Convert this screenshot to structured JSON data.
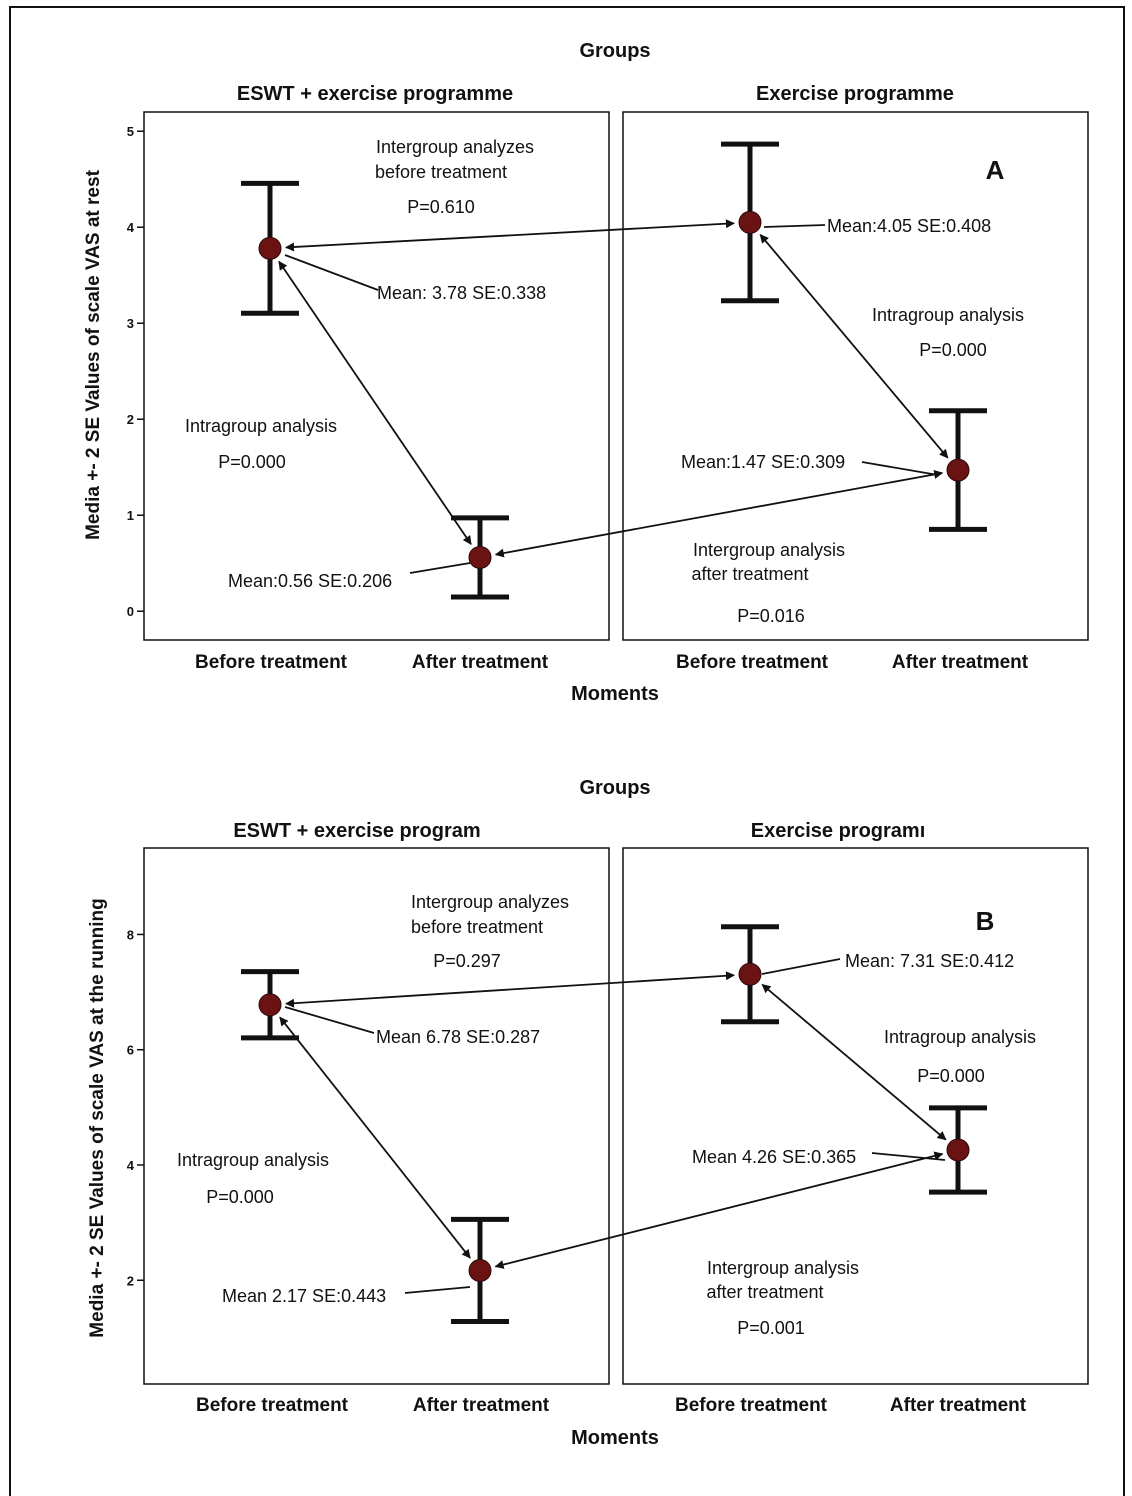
{
  "chart_data": [
    {
      "type": "errorbar",
      "letter": "A",
      "header": "Groups",
      "xlabel": "Moments",
      "ylabel": "Media +- 2 SE Values of scale VAS at rest",
      "yticks": [
        0,
        1,
        2,
        3,
        4,
        5
      ],
      "ylim": [
        -0.3,
        5.2
      ],
      "categories": [
        "Before treatment",
        "After treatment"
      ],
      "panels": [
        {
          "title": "ESWT + exercise programme",
          "points": [
            {
              "category": "Before treatment",
              "mean": 3.78,
              "se": 0.338,
              "label": "Mean: 3.78 SE:0.338"
            },
            {
              "category": "After treatment",
              "mean": 0.56,
              "se": 0.206,
              "label": "Mean:0.56 SE:0.206"
            }
          ],
          "intragroup": {
            "title": "Intragroup analysis",
            "p": "P=0.000"
          }
        },
        {
          "title": "Exercise programme",
          "points": [
            {
              "category": "Before treatment",
              "mean": 4.05,
              "se": 0.408,
              "label": "Mean:4.05 SE:0.408"
            },
            {
              "category": "After treatment",
              "mean": 1.47,
              "se": 0.309,
              "label": "Mean:1.47 SE:0.309"
            }
          ],
          "intragroup": {
            "title": "Intragroup analysis",
            "p": "P=0.000"
          }
        }
      ],
      "intergroup_before": {
        "line1": "Intergroup analyzes",
        "line2": "before treatment",
        "p": "P=0.610"
      },
      "intergroup_after": {
        "line1": "Intergroup analysis",
        "line2": "after treatment",
        "p": "P=0.016"
      }
    },
    {
      "type": "errorbar",
      "letter": "B",
      "header": "Groups",
      "xlabel": "Moments",
      "ylabel": "Media +- 2 SE Values of scale VAS at the running",
      "yticks": [
        2,
        4,
        6,
        8
      ],
      "ylim": [
        0.2,
        9.5
      ],
      "categories": [
        "Before treatment",
        "After treatment"
      ],
      "panels": [
        {
          "title": "ESWT + exercise program",
          "points": [
            {
              "category": "Before treatment",
              "mean": 6.78,
              "se": 0.287,
              "label": "Mean 6.78 SE:0.287"
            },
            {
              "category": "After treatment",
              "mean": 2.17,
              "se": 0.443,
              "label": "Mean 2.17 SE:0.443"
            }
          ],
          "intragroup": {
            "title": "Intragroup analysis",
            "p": "P=0.000"
          }
        },
        {
          "title": "Exercise programı",
          "points": [
            {
              "category": "Before treatment",
              "mean": 7.31,
              "se": 0.412,
              "label": "Mean: 7.31 SE:0.412"
            },
            {
              "category": "After treatment",
              "mean": 4.26,
              "se": 0.365,
              "label": "Mean 4.26 SE:0.365"
            }
          ],
          "intragroup": {
            "title": "Intragroup analysis",
            "p": "P=0.000"
          }
        }
      ],
      "intergroup_before": {
        "line1": "Intergroup analyzes",
        "line2": "before treatment",
        "p": "P=0.297"
      },
      "intergroup_after": {
        "line1": "Intergroup analysis",
        "line2": "after treatment",
        "p": "P=0.001"
      }
    }
  ],
  "style": {
    "marker_color": "#6b1212",
    "line_color": "#111111"
  }
}
